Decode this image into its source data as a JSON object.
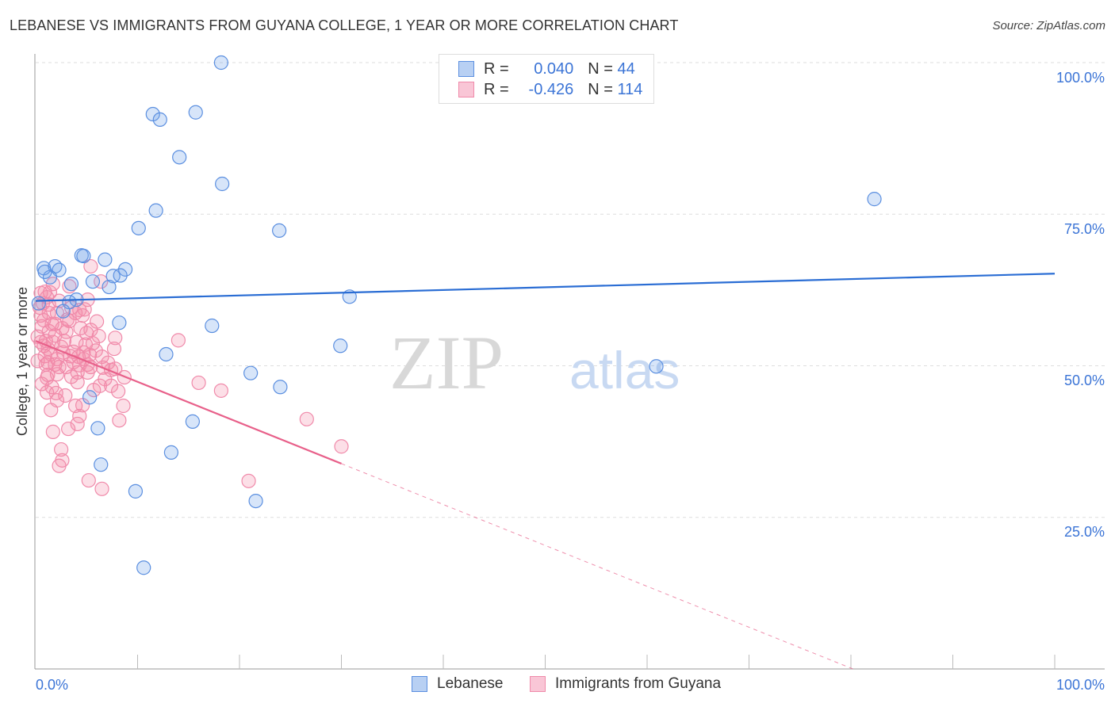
{
  "title": "LEBANESE VS IMMIGRANTS FROM GUYANA COLLEGE, 1 YEAR OR MORE CORRELATION CHART",
  "source": "Source: ZipAtlas.com",
  "watermark": {
    "zip": "ZIP",
    "atlas": "atlas"
  },
  "legend": [
    {
      "r_label": "R =",
      "r_value": "0.040",
      "n_label": "N =",
      "n_value": "44"
    },
    {
      "r_label": "R =",
      "r_value": "-0.426",
      "n_label": "N =",
      "n_value": "114"
    }
  ],
  "colors": {
    "blue": "#5b8fe0",
    "blue_line": "#2a6dd4",
    "pink": "#f08aaa",
    "pink_line": "#e8608a",
    "label": "#3b74d6"
  },
  "chart_data": {
    "type": "scatter",
    "title": "LEBANESE VS IMMIGRANTS FROM GUYANA COLLEGE, 1 YEAR OR MORE CORRELATION CHART",
    "xlabel": "",
    "ylabel": "College, 1 year or more",
    "xlim": [
      0,
      100
    ],
    "ylim": [
      0,
      100
    ],
    "x_tick_labels": [
      "0.0%",
      "100.0%"
    ],
    "y_ticks": [
      100,
      75,
      50,
      25
    ],
    "y_tick_labels": [
      "100.0%",
      "75.0%",
      "50.0%",
      "25.0%"
    ],
    "grid": true,
    "legend_position": "bottom",
    "series": [
      {
        "name": "Lebanese",
        "trend": {
          "x": [
            0,
            100
          ],
          "y": [
            60.7,
            65.2
          ],
          "solid_to": 100
        },
        "points": [
          [
            18.2,
            100
          ],
          [
            11.5,
            91.5
          ],
          [
            12.2,
            90.6
          ],
          [
            15.7,
            91.8
          ],
          [
            14.1,
            84.4
          ],
          [
            18.3,
            80.0
          ],
          [
            82.3,
            77.5
          ],
          [
            11.8,
            75.6
          ],
          [
            10.1,
            72.7
          ],
          [
            23.9,
            72.3
          ],
          [
            0.8,
            66.1
          ],
          [
            1.9,
            66.4
          ],
          [
            2.3,
            65.8
          ],
          [
            4.5,
            68.2
          ],
          [
            4.7,
            68.1
          ],
          [
            6.8,
            67.5
          ],
          [
            8.8,
            65.9
          ],
          [
            7.6,
            64.8
          ],
          [
            8.3,
            64.9
          ],
          [
            5.6,
            63.9
          ],
          [
            1.4,
            64.6
          ],
          [
            7.2,
            63.0
          ],
          [
            3.5,
            63.5
          ],
          [
            4.0,
            60.9
          ],
          [
            3.3,
            60.5
          ],
          [
            0.3,
            60.3
          ],
          [
            2.7,
            59.0
          ],
          [
            8.2,
            57.1
          ],
          [
            17.3,
            56.6
          ],
          [
            30.8,
            61.4
          ],
          [
            29.9,
            53.3
          ],
          [
            12.8,
            51.9
          ],
          [
            21.1,
            48.8
          ],
          [
            60.9,
            49.9
          ],
          [
            24.0,
            46.5
          ],
          [
            5.3,
            44.8
          ],
          [
            15.4,
            40.8
          ],
          [
            6.1,
            39.7
          ],
          [
            13.3,
            35.7
          ],
          [
            6.4,
            33.7
          ],
          [
            9.8,
            29.3
          ],
          [
            21.6,
            27.7
          ],
          [
            10.6,
            16.7
          ],
          [
            0.9,
            65.5
          ]
        ]
      },
      {
        "name": "Immigrants from Guyana",
        "trend": {
          "x": [
            0,
            80.2
          ],
          "y": [
            54.1,
            0
          ],
          "solid_to": 30
        },
        "points": [
          [
            5.4,
            66.4
          ],
          [
            14.0,
            54.2
          ],
          [
            16.0,
            47.2
          ],
          [
            18.2,
            45.9
          ],
          [
            26.6,
            41.2
          ],
          [
            30.0,
            36.7
          ],
          [
            20.9,
            31.0
          ],
          [
            6.5,
            29.7
          ],
          [
            5.2,
            31.1
          ],
          [
            2.3,
            33.5
          ],
          [
            2.6,
            34.4
          ],
          [
            2.5,
            36.2
          ],
          [
            1.7,
            39.1
          ],
          [
            3.2,
            39.6
          ],
          [
            4.1,
            40.4
          ],
          [
            4.3,
            41.7
          ],
          [
            1.5,
            42.7
          ],
          [
            2.1,
            44.3
          ],
          [
            2.9,
            45.1
          ],
          [
            1.1,
            45.6
          ],
          [
            8.2,
            41.0
          ],
          [
            8.6,
            43.4
          ],
          [
            8.1,
            45.8
          ],
          [
            7.4,
            46.7
          ],
          [
            6.8,
            47.8
          ],
          [
            5.7,
            46.0
          ],
          [
            4.6,
            43.5
          ],
          [
            3.9,
            43.4
          ],
          [
            4.1,
            47.3
          ],
          [
            1.1,
            48.0
          ],
          [
            1.2,
            48.5
          ],
          [
            8.7,
            48.1
          ],
          [
            7.4,
            49.3
          ],
          [
            6.6,
            49.7
          ],
          [
            5.4,
            49.8
          ],
          [
            4.3,
            50.1
          ],
          [
            3.0,
            49.8
          ],
          [
            1.0,
            50.2
          ],
          [
            2.1,
            51.1
          ],
          [
            3.7,
            50.6
          ],
          [
            4.7,
            51.1
          ],
          [
            3.4,
            51.6
          ],
          [
            1.5,
            51.9
          ],
          [
            1.2,
            52.8
          ],
          [
            2.5,
            53.1
          ],
          [
            0.8,
            53.3
          ],
          [
            1.7,
            53.9
          ],
          [
            7.7,
            52.8
          ],
          [
            4.7,
            52.2
          ],
          [
            5.9,
            52.5
          ],
          [
            4.9,
            53.5
          ],
          [
            6.2,
            54.9
          ],
          [
            7.8,
            54.6
          ],
          [
            5.0,
            55.4
          ],
          [
            5.4,
            55.9
          ],
          [
            4.4,
            56.2
          ],
          [
            6.0,
            57.3
          ],
          [
            3.0,
            55.6
          ],
          [
            1.3,
            55.7
          ],
          [
            0.6,
            56.5
          ],
          [
            1.9,
            56.9
          ],
          [
            0.8,
            57.5
          ],
          [
            3.1,
            57.6
          ],
          [
            2.1,
            58.7
          ],
          [
            0.5,
            58.3
          ],
          [
            4.3,
            59.2
          ],
          [
            4.8,
            59.3
          ],
          [
            3.5,
            59.6
          ],
          [
            1.3,
            60.1
          ],
          [
            0.7,
            60.3
          ],
          [
            1.1,
            61.3
          ],
          [
            1.4,
            62.1
          ],
          [
            1.7,
            63.5
          ],
          [
            3.3,
            63.1
          ],
          [
            6.4,
            63.9
          ],
          [
            0.4,
            59.6
          ],
          [
            0.2,
            54.8
          ],
          [
            0.2,
            50.8
          ],
          [
            2.1,
            48.6
          ],
          [
            4.1,
            48.9
          ],
          [
            5.6,
            53.7
          ],
          [
            5.1,
            50.2
          ],
          [
            2.8,
            54.1
          ],
          [
            3.5,
            48.2
          ],
          [
            6.5,
            51.5
          ],
          [
            7.1,
            50.5
          ],
          [
            0.9,
            51.6
          ],
          [
            0.5,
            53.9
          ],
          [
            1.3,
            58.7
          ],
          [
            2.3,
            60.7
          ],
          [
            3.9,
            58.7
          ],
          [
            1.9,
            55.0
          ],
          [
            5.1,
            60.9
          ],
          [
            2.7,
            52.2
          ],
          [
            1.6,
            46.5
          ],
          [
            6.3,
            46.7
          ],
          [
            5.1,
            48.9
          ],
          [
            7.8,
            49.5
          ],
          [
            0.9,
            62.2
          ],
          [
            3.3,
            57.4
          ],
          [
            4.0,
            53.9
          ],
          [
            1.2,
            50.5
          ],
          [
            2.3,
            49.8
          ],
          [
            4.2,
            51.5
          ],
          [
            0.5,
            62.0
          ],
          [
            1.6,
            56.9
          ],
          [
            2.6,
            56.2
          ],
          [
            1.0,
            54.1
          ],
          [
            3.7,
            52.3
          ],
          [
            1.9,
            50.2
          ],
          [
            4.6,
            58.3
          ],
          [
            5.3,
            51.8
          ],
          [
            0.6,
            47.0
          ],
          [
            2.0,
            45.5
          ]
        ]
      }
    ]
  }
}
